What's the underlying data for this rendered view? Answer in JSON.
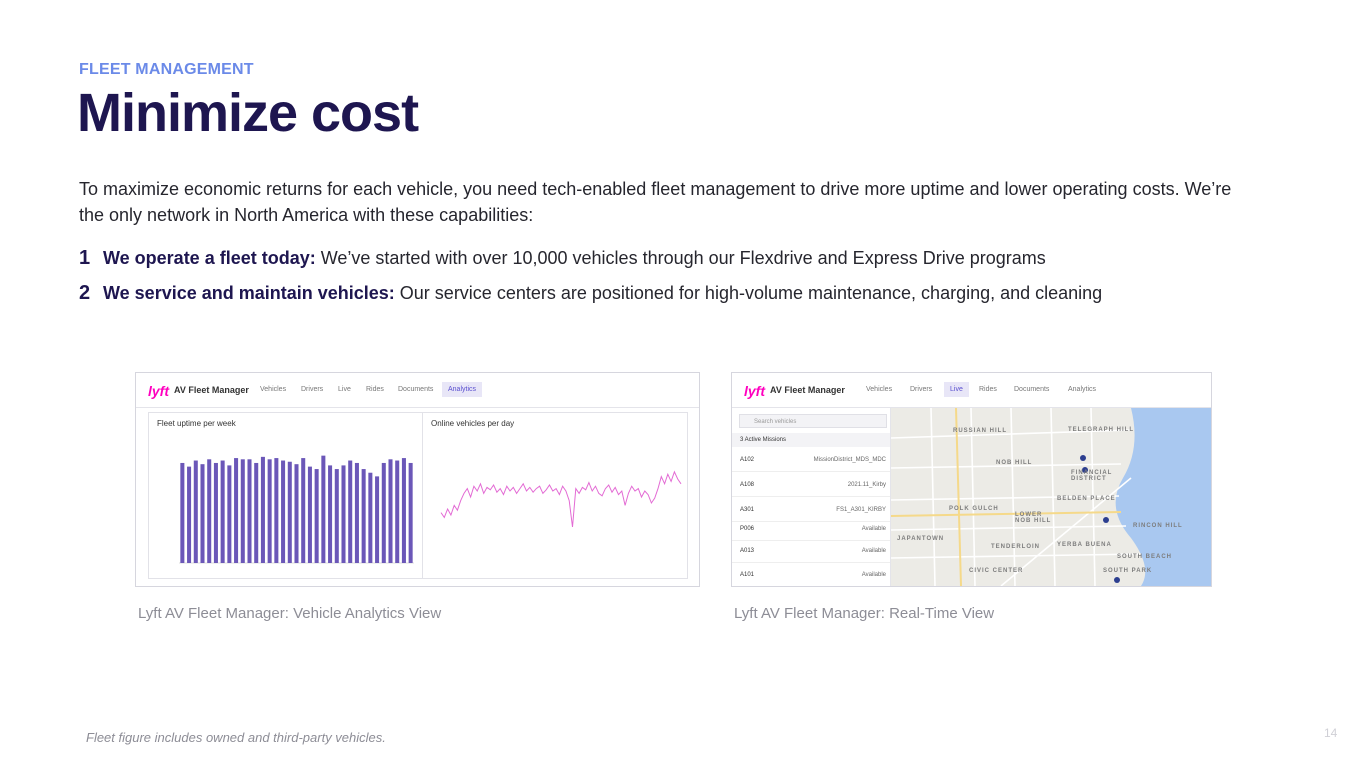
{
  "header": {
    "eyebrow": "FLEET MANAGEMENT",
    "title": "Minimize cost"
  },
  "intro": "To maximize economic returns for each vehicle, you need tech-enabled fleet management to drive more uptime and lower operating costs. We’re the only network in North America with these capabilities:",
  "points": [
    {
      "num": "1",
      "bold": "We operate a fleet today:",
      "text": " We’ve started with over 10,000 vehicles through our Flexdrive and Express Drive programs"
    },
    {
      "num": "2",
      "bold": "We service and maintain vehicles:",
      "text": " Our service centers are positioned for high-volume maintenance, charging, and cleaning"
    }
  ],
  "screenshot_analytics": {
    "logo": "lyft",
    "app_name": "AV Fleet Manager",
    "nav": [
      "Vehicles",
      "Drivers",
      "Live",
      "Rides",
      "Documents",
      "Analytics"
    ],
    "active_nav": "Analytics",
    "panel_left_title": "Fleet uptime per week",
    "panel_right_title": "Online vehicles per day",
    "caption": "Lyft AV Fleet Manager: Vehicle Analytics View",
    "bar_color": "#6b57b8",
    "line_color": "#e36bd4",
    "uptime_values": [
      0.82,
      0.79,
      0.84,
      0.81,
      0.85,
      0.82,
      0.84,
      0.8,
      0.86,
      0.85,
      0.85,
      0.82,
      0.87,
      0.85,
      0.86,
      0.84,
      0.83,
      0.81,
      0.86,
      0.79,
      0.77,
      0.88,
      0.8,
      0.77,
      0.8,
      0.84,
      0.82,
      0.77,
      0.74,
      0.71,
      0.82,
      0.85,
      0.84,
      0.86,
      0.82
    ],
    "online_values": [
      0.42,
      0.38,
      0.45,
      0.4,
      0.48,
      0.44,
      0.52,
      0.58,
      0.62,
      0.55,
      0.64,
      0.6,
      0.66,
      0.58,
      0.63,
      0.61,
      0.65,
      0.59,
      0.62,
      0.57,
      0.64,
      0.6,
      0.63,
      0.58,
      0.62,
      0.66,
      0.6,
      0.63,
      0.59,
      0.62,
      0.64,
      0.58,
      0.61,
      0.65,
      0.6,
      0.62,
      0.57,
      0.64,
      0.6,
      0.52,
      0.3,
      0.62,
      0.58,
      0.63,
      0.61,
      0.67,
      0.6,
      0.64,
      0.58,
      0.56,
      0.62,
      0.65,
      0.59,
      0.63,
      0.57,
      0.6,
      0.48,
      0.58,
      0.64,
      0.6,
      0.62,
      0.55,
      0.6,
      0.57,
      0.5,
      0.54,
      0.62,
      0.72,
      0.66,
      0.74,
      0.68,
      0.76,
      0.7,
      0.66
    ]
  },
  "screenshot_live": {
    "logo": "lyft",
    "app_name": "AV Fleet Manager",
    "nav": [
      "Vehicles",
      "Drivers",
      "Live",
      "Rides",
      "Documents",
      "Analytics"
    ],
    "active_nav": "Live",
    "search_placeholder": "Search vehicles",
    "missions_header": "3 Active Missions",
    "missions": [
      {
        "id": "A102",
        "value": "MissionDistrict_MDS_MDC"
      },
      {
        "id": "A108",
        "value": "2021.11_Kirby"
      },
      {
        "id": "A301",
        "value": "FS1_A301_KIRBY"
      },
      {
        "id": "P006",
        "value": "Available"
      },
      {
        "id": "A013",
        "value": "Available"
      },
      {
        "id": "A101",
        "value": "Available"
      }
    ],
    "map_labels": [
      "RUSSIAN HILL",
      "TELEGRAPH HILL",
      "NOB HILL",
      "FINANCIAL DISTRICT",
      "BELDEN PLACE",
      "POLK GULCH",
      "LOWER NOB HILL",
      "RINCON HILL",
      "JAPANTOWN",
      "TENDERLOIN",
      "YERBA BUENA",
      "SOUTH BEACH",
      "CIVIC CENTER",
      "SOUTH PARK"
    ],
    "water_color": "#a9c8f0",
    "caption": "Lyft AV Fleet Manager: Real-Time View"
  },
  "footnote": "Fleet figure includes owned and third-party vehicles.",
  "page_number": "14"
}
